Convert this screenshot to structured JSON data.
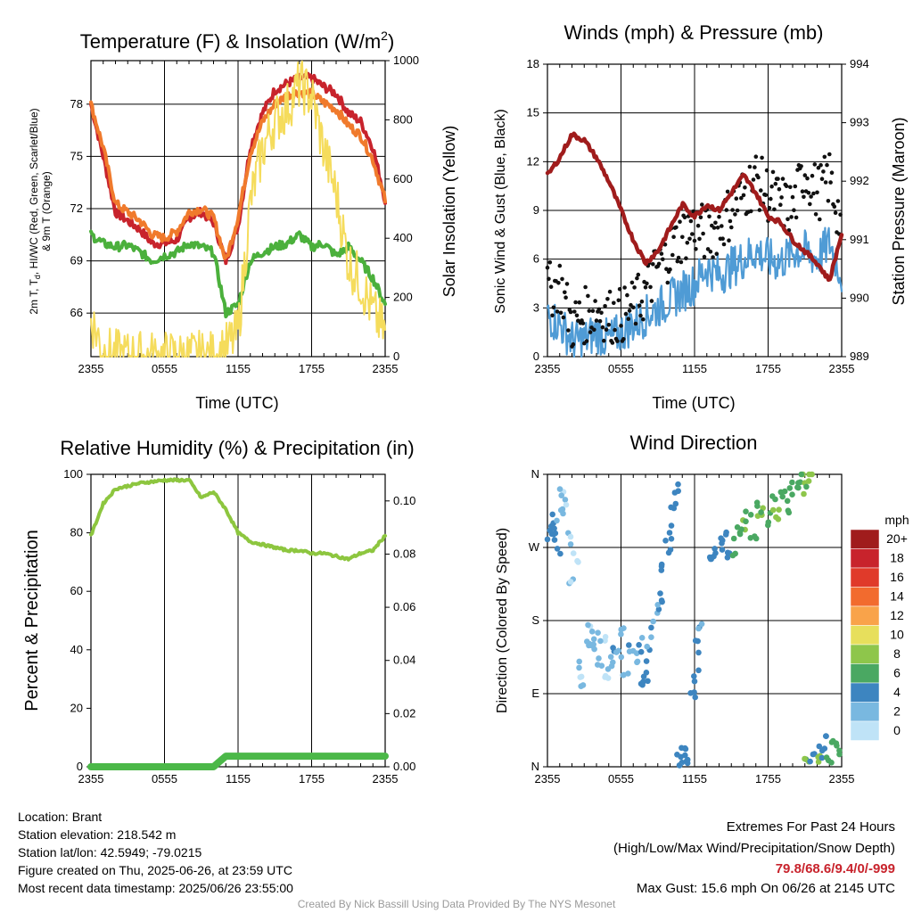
{
  "panels": {
    "temp": {
      "title_main": "Temperature (F) & Insolation (W/m",
      "title_sup": "2",
      "title_end": ")",
      "y_left_lines": [
        "2m T, T",
        "d",
        ", HI/WC (Red, Green, Scarlet/Blue)",
        "& 9m T (Orange)"
      ],
      "y_right_label": "Solar Insolation (Yellow)",
      "x_label": "Time (UTC)"
    },
    "wind": {
      "title": "Winds (mph) & Pressure (mb)",
      "y_left_label": "Sonic Wind & Gust (Blue, Black)",
      "y_right_label": "Station Pressure (Maroon)",
      "x_label": "Time (UTC)"
    },
    "rh": {
      "title": "Relative Humidity (%) & Precipitation (in)",
      "y_left_label": "Percent & Precipitation"
    },
    "dir": {
      "title": "Wind Direction",
      "y_left_label": "Direction (Colored By Speed)",
      "legend_title": "mph",
      "legend_labels": [
        "20+",
        "18",
        "16",
        "14",
        "12",
        "10",
        "8",
        "6",
        "4",
        "2",
        "0"
      ],
      "legend_colors": [
        "#a01c1c",
        "#c8232c",
        "#e03a2a",
        "#f26b2e",
        "#f9a34a",
        "#e7df5c",
        "#8ec64b",
        "#4aa862",
        "#3d85c0",
        "#79b8e0",
        "#bfe3f7"
      ]
    }
  },
  "footer": {
    "location": "Location: Brant",
    "elevation": "Station elevation: 218.542 m",
    "latlon": "Station lat/lon: 42.5949; -79.0215",
    "created": "Figure created on Thu, 2025-06-26, at 23:59 UTC",
    "recent": "Most recent data timestamp: 2025/06/26 23:55:00",
    "extremes_title": "Extremes For Past 24 Hours",
    "extremes_sub": "(High/Low/Max Wind/Precipitation/Snow Depth)",
    "extremes_values": "79.8/68.6/9.4/0/-999",
    "max_gust": "Max Gust: 15.6 mph On 06/26 at 2145 UTC",
    "credit": "Created By Nick Bassill Using Data Provided By The NYS Mesonet"
  },
  "colors": {
    "temp_red": "#c8232c",
    "temp_orange": "#f07a2c",
    "temp_green": "#4bb03c",
    "insolation_yellow": "#f5dc5c",
    "wind_blue": "#4f9bd5",
    "gust_black": "#111111",
    "pressure_maroon": "#a01c1c",
    "rh_green": "#8dc63f",
    "precip_green": "#4bb848"
  },
  "chart_data": [
    {
      "type": "line",
      "title": "Temperature (F) & Insolation (W/m2)",
      "xlabel": "Time (UTC)",
      "ylabel": "2m T, Td, HI/WC (Red, Green, Scarlet/Blue) & 9m T (Orange)",
      "y2label": "Solar Insolation (Yellow)",
      "x_ticks": [
        "2355",
        "0555",
        "1155",
        "1755",
        "2355"
      ],
      "ylim": [
        63.5,
        80.5
      ],
      "y_ticks": [
        66,
        69,
        72,
        75,
        78
      ],
      "y2lim": [
        0,
        1000
      ],
      "y2_ticks": [
        0,
        200,
        400,
        600,
        800,
        1000
      ],
      "x_hours": [
        0,
        1,
        2,
        3,
        4,
        5,
        6,
        7,
        8,
        9,
        10,
        11,
        12,
        13,
        14,
        15,
        16,
        17,
        18,
        19,
        20,
        21,
        22,
        23,
        24
      ],
      "series": [
        {
          "name": "2m T",
          "color": "#c8232c",
          "values": [
            78.0,
            75.0,
            71.8,
            71.3,
            70.8,
            70.0,
            70.0,
            70.2,
            71.5,
            71.8,
            71.2,
            69.0,
            71.0,
            75.5,
            77.5,
            78.8,
            79.2,
            79.5,
            79.5,
            79.0,
            78.6,
            77.5,
            77.0,
            75.5,
            72.5
          ]
        },
        {
          "name": "9m T",
          "color": "#f07a2c",
          "values": [
            78.0,
            75.5,
            72.3,
            71.8,
            71.3,
            70.5,
            70.3,
            70.7,
            71.8,
            72.0,
            71.5,
            69.0,
            71.5,
            75.2,
            77.0,
            78.0,
            78.5,
            78.7,
            78.6,
            78.1,
            77.7,
            76.8,
            76.2,
            74.8,
            72.5
          ]
        },
        {
          "name": "2m Td",
          "color": "#4bb03c",
          "values": [
            70.5,
            70.0,
            69.8,
            69.9,
            69.5,
            69.0,
            69.3,
            69.5,
            70.0,
            69.8,
            69.5,
            66.0,
            66.5,
            69.0,
            69.5,
            69.8,
            70.0,
            70.5,
            69.8,
            70.0,
            69.3,
            69.8,
            69.0,
            68.0,
            66.5
          ]
        },
        {
          "name": "Solar Insolation",
          "axis": "y2",
          "color": "#f5dc5c",
          "values": [
            130,
            20,
            5,
            0,
            0,
            0,
            0,
            0,
            0,
            0,
            0,
            25,
            80,
            520,
            700,
            800,
            840,
            920,
            880,
            700,
            550,
            320,
            250,
            150,
            80
          ]
        }
      ]
    },
    {
      "type": "line",
      "title": "Winds (mph) & Pressure (mb)",
      "xlabel": "Time (UTC)",
      "ylabel": "Sonic Wind & Gust (Blue, Black)",
      "y2label": "Station Pressure (Maroon)",
      "x_ticks": [
        "2355",
        "0555",
        "1155",
        "1755",
        "2355"
      ],
      "ylim": [
        0,
        18
      ],
      "y_ticks": [
        0,
        3,
        6,
        9,
        12,
        15,
        18
      ],
      "y2lim": [
        989,
        994
      ],
      "y2_ticks": [
        989,
        990,
        991,
        992,
        993,
        994
      ],
      "x_hours": [
        0,
        1,
        2,
        3,
        4,
        5,
        6,
        7,
        8,
        9,
        10,
        11,
        12,
        13,
        14,
        15,
        16,
        17,
        18,
        19,
        20,
        21,
        22,
        23,
        24
      ],
      "series": [
        {
          "name": "Sonic Wind",
          "color": "#4f9bd5",
          "values": [
            2.5,
            2.0,
            1.0,
            1.0,
            1.5,
            1.0,
            1.5,
            2.0,
            2.5,
            3.0,
            3.5,
            4.0,
            4.5,
            5.5,
            5.0,
            5.5,
            6.0,
            6.5,
            6.0,
            5.8,
            6.5,
            6.5,
            6.0,
            7.0,
            5.0
          ]
        },
        {
          "name": "Gust",
          "color": "#111111",
          "style": "points",
          "values": [
            4.0,
            4.5,
            2.0,
            2.5,
            3.0,
            2.5,
            2.5,
            3.0,
            4.0,
            5.5,
            6.5,
            7.5,
            8.0,
            7.5,
            8.0,
            9.0,
            10.0,
            11.0,
            10.0,
            9.5,
            9.0,
            11.5,
            10.0,
            11.0,
            8.0
          ]
        },
        {
          "name": "Station Pressure",
          "axis": "y2",
          "color": "#a01c1c",
          "values": [
            992.1,
            992.4,
            992.8,
            992.7,
            992.4,
            992.0,
            991.5,
            991.0,
            990.6,
            990.8,
            991.2,
            991.6,
            991.4,
            991.6,
            991.5,
            991.8,
            992.1,
            991.8,
            991.4,
            991.3,
            991.0,
            990.8,
            990.6,
            990.3,
            991.1
          ]
        }
      ]
    },
    {
      "type": "line",
      "title": "Relative Humidity (%) & Precipitation (in)",
      "ylabel": "Percent & Precipitation",
      "x_ticks": [
        "2355",
        "0555",
        "1155",
        "1755",
        "2355"
      ],
      "ylim": [
        0,
        100
      ],
      "y_ticks": [
        0,
        20,
        40,
        60,
        80,
        100
      ],
      "y2lim": [
        0,
        0.11
      ],
      "y2_ticks": [
        0.0,
        0.02,
        0.04,
        0.06,
        0.08,
        0.1
      ],
      "x_hours": [
        0,
        1,
        2,
        3,
        4,
        5,
        6,
        7,
        8,
        9,
        10,
        11,
        12,
        13,
        14,
        15,
        16,
        17,
        18,
        19,
        20,
        21,
        22,
        23,
        24
      ],
      "series": [
        {
          "name": "Relative Humidity",
          "color": "#8dc63f",
          "values": [
            79,
            90,
            95,
            96,
            97,
            97.5,
            98,
            98,
            98,
            92,
            94,
            88,
            80,
            77,
            76,
            75,
            74,
            74,
            73,
            73,
            72,
            71,
            73,
            74,
            79
          ]
        },
        {
          "name": "Precipitation",
          "axis": "y2",
          "color": "#4bb848",
          "values": [
            0,
            0,
            0,
            0,
            0,
            0,
            0,
            0,
            0,
            0,
            0,
            0.004,
            0.004,
            0.004,
            0.004,
            0.004,
            0.004,
            0.004,
            0.004,
            0.004,
            0.004,
            0.004,
            0.004,
            0.004,
            0.004
          ]
        }
      ]
    },
    {
      "type": "scatter",
      "title": "Wind Direction",
      "ylabel": "Direction (Colored By Speed)",
      "x_ticks": [
        "2355",
        "0555",
        "1155",
        "1755",
        "2355"
      ],
      "y_ticks": [
        "N",
        "E",
        "S",
        "W",
        "N"
      ],
      "ylim": [
        0,
        360
      ],
      "colorbar_label": "mph",
      "points": [
        [
          0.2,
          280,
          4
        ],
        [
          0.4,
          300,
          4
        ],
        [
          0.6,
          290,
          3
        ],
        [
          0.8,
          270,
          3
        ],
        [
          1.0,
          310,
          2
        ],
        [
          1.2,
          340,
          1
        ],
        [
          1.5,
          320,
          1
        ],
        [
          1.8,
          280,
          1
        ],
        [
          2.0,
          230,
          1
        ],
        [
          2.3,
          260,
          1
        ],
        [
          2.6,
          120,
          1
        ],
        [
          2.9,
          100,
          1
        ],
        [
          3.2,
          150,
          2
        ],
        [
          3.5,
          170,
          1
        ],
        [
          3.8,
          140,
          2
        ],
        [
          4.0,
          160,
          2
        ],
        [
          4.2,
          130,
          2
        ],
        [
          4.5,
          150,
          1
        ],
        [
          4.8,
          110,
          1
        ],
        [
          5.1,
          125,
          2
        ],
        [
          5.4,
          140,
          3
        ],
        [
          5.8,
          135,
          2
        ],
        [
          6.1,
          160,
          2
        ],
        [
          6.4,
          120,
          3
        ],
        [
          6.8,
          140,
          3
        ],
        [
          7.2,
          130,
          2
        ],
        [
          7.5,
          150,
          3
        ],
        [
          7.8,
          100,
          3
        ],
        [
          8.0,
          110,
          4
        ],
        [
          8.3,
          140,
          3
        ],
        [
          8.6,
          170,
          3
        ],
        [
          8.9,
          190,
          3
        ],
        [
          9.2,
          210,
          4
        ],
        [
          9.5,
          240,
          4
        ],
        [
          9.8,
          270,
          4
        ],
        [
          10.1,
          290,
          4
        ],
        [
          10.3,
          320,
          4
        ],
        [
          10.5,
          345,
          4
        ],
        [
          10.8,
          15,
          4
        ],
        [
          11.0,
          5,
          3
        ],
        [
          11.2,
          10,
          4
        ],
        [
          11.4,
          25,
          4
        ],
        [
          11.9,
          90,
          4
        ],
        [
          12.1,
          110,
          4
        ],
        [
          12.3,
          150,
          4
        ],
        [
          12.5,
          180,
          3
        ],
        [
          13.5,
          250,
          4
        ],
        [
          13.8,
          260,
          4
        ],
        [
          14.1,
          270,
          4
        ],
        [
          14.4,
          280,
          4
        ],
        [
          14.8,
          255,
          4
        ],
        [
          15.2,
          270,
          6
        ],
        [
          15.6,
          290,
          6
        ],
        [
          16.0,
          300,
          7
        ],
        [
          16.4,
          310,
          6
        ],
        [
          16.8,
          290,
          6
        ],
        [
          17.2,
          315,
          7
        ],
        [
          17.6,
          320,
          7
        ],
        [
          18.0,
          305,
          6
        ],
        [
          18.4,
          325,
          7
        ],
        [
          18.8,
          310,
          8
        ],
        [
          19.2,
          330,
          6
        ],
        [
          19.6,
          320,
          6
        ],
        [
          20.0,
          340,
          6
        ],
        [
          20.4,
          350,
          6
        ],
        [
          20.8,
          355,
          7
        ],
        [
          21.0,
          345,
          7
        ],
        [
          21.5,
          355,
          8
        ],
        [
          21.2,
          2,
          7
        ],
        [
          21.6,
          10,
          4
        ],
        [
          22.0,
          5,
          7
        ],
        [
          22.4,
          20,
          4
        ],
        [
          22.7,
          30,
          4
        ],
        [
          23.0,
          15,
          6
        ],
        [
          23.4,
          25,
          6
        ],
        [
          23.8,
          20,
          6
        ]
      ]
    }
  ]
}
